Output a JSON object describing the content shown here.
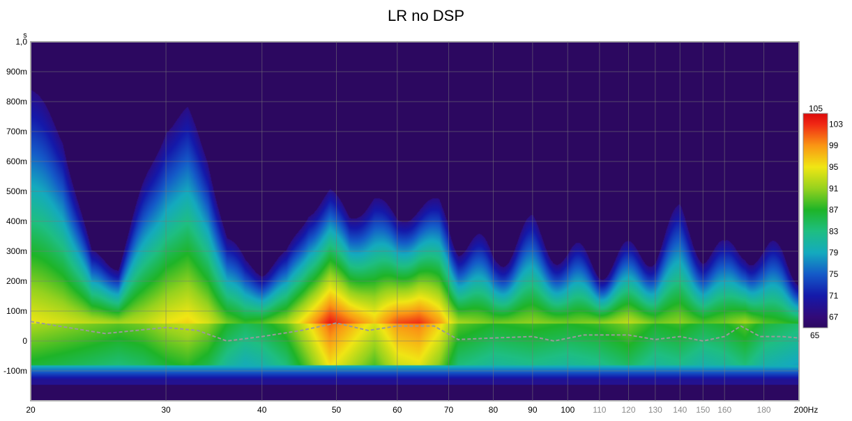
{
  "chart_data": {
    "type": "heatmap",
    "title": "LR no DSP",
    "y_unit": "s",
    "x_unit": "Hz",
    "x_scale": "log",
    "xlim": [
      20,
      200
    ],
    "ylim": [
      -0.2,
      1.0
    ],
    "x_ticks": [
      {
        "value": 20,
        "label": "20",
        "major": true
      },
      {
        "value": 30,
        "label": "30",
        "major": true
      },
      {
        "value": 40,
        "label": "40",
        "major": true
      },
      {
        "value": 50,
        "label": "50",
        "major": true
      },
      {
        "value": 60,
        "label": "60",
        "major": true
      },
      {
        "value": 70,
        "label": "70",
        "major": true
      },
      {
        "value": 80,
        "label": "80",
        "major": true
      },
      {
        "value": 90,
        "label": "90",
        "major": true
      },
      {
        "value": 100,
        "label": "100",
        "major": true
      },
      {
        "value": 110,
        "label": "110",
        "major": false
      },
      {
        "value": 120,
        "label": "120",
        "major": false
      },
      {
        "value": 130,
        "label": "130",
        "major": false
      },
      {
        "value": 140,
        "label": "140",
        "major": false
      },
      {
        "value": 150,
        "label": "150",
        "major": false
      },
      {
        "value": 160,
        "label": "160",
        "major": false
      },
      {
        "value": 180,
        "label": "180",
        "major": false
      },
      {
        "value": 200,
        "label": "200Hz",
        "major": true
      }
    ],
    "y_ticks": [
      {
        "value": 1.0,
        "label": "1,0"
      },
      {
        "value": 0.9,
        "label": "900m"
      },
      {
        "value": 0.8,
        "label": "800m"
      },
      {
        "value": 0.7,
        "label": "700m"
      },
      {
        "value": 0.6,
        "label": "600m"
      },
      {
        "value": 0.5,
        "label": "500m"
      },
      {
        "value": 0.4,
        "label": "400m"
      },
      {
        "value": 0.3,
        "label": "300m"
      },
      {
        "value": 0.2,
        "label": "200m"
      },
      {
        "value": 0.1,
        "label": "100m"
      },
      {
        "value": 0.0,
        "label": "0"
      },
      {
        "value": -0.1,
        "label": "-100m"
      }
    ],
    "colorbar": {
      "min": 65,
      "max": 105,
      "labels": [
        "105",
        "103",
        "99",
        "95",
        "91",
        "87",
        "83",
        "79",
        "75",
        "71",
        "67",
        "65"
      ],
      "label_values": [
        105,
        103,
        99,
        95,
        91,
        87,
        83,
        79,
        75,
        71,
        67,
        65
      ]
    },
    "decay_profile_s": [
      {
        "x": 20,
        "decay": 0.78,
        "peak": 95
      },
      {
        "x": 22,
        "decay": 0.62,
        "peak": 94
      },
      {
        "x": 24,
        "decay": 0.22,
        "peak": 93
      },
      {
        "x": 26,
        "decay": 0.2,
        "peak": 92
      },
      {
        "x": 28,
        "decay": 0.45,
        "peak": 93
      },
      {
        "x": 30,
        "decay": 0.66,
        "peak": 95
      },
      {
        "x": 32,
        "decay": 0.7,
        "peak": 96
      },
      {
        "x": 34,
        "decay": 0.55,
        "peak": 94
      },
      {
        "x": 36,
        "decay": 0.28,
        "peak": 90
      },
      {
        "x": 38,
        "decay": 0.2,
        "peak": 88
      },
      {
        "x": 40,
        "decay": 0.18,
        "peak": 89
      },
      {
        "x": 43,
        "decay": 0.22,
        "peak": 92
      },
      {
        "x": 46,
        "decay": 0.38,
        "peak": 98
      },
      {
        "x": 49,
        "decay": 0.43,
        "peak": 104
      },
      {
        "x": 52,
        "decay": 0.36,
        "peak": 101
      },
      {
        "x": 56,
        "decay": 0.41,
        "peak": 97
      },
      {
        "x": 60,
        "decay": 0.35,
        "peak": 102
      },
      {
        "x": 64,
        "decay": 0.38,
        "peak": 103
      },
      {
        "x": 68,
        "decay": 0.4,
        "peak": 99
      },
      {
        "x": 72,
        "decay": 0.28,
        "peak": 92
      },
      {
        "x": 80,
        "decay": 0.22,
        "peak": 90
      },
      {
        "x": 90,
        "decay": 0.31,
        "peak": 91
      },
      {
        "x": 100,
        "decay": 0.22,
        "peak": 90
      },
      {
        "x": 110,
        "decay": 0.2,
        "peak": 91
      },
      {
        "x": 120,
        "decay": 0.22,
        "peak": 93
      },
      {
        "x": 130,
        "decay": 0.25,
        "peak": 90
      },
      {
        "x": 140,
        "decay": 0.35,
        "peak": 91
      },
      {
        "x": 150,
        "decay": 0.25,
        "peak": 89
      },
      {
        "x": 160,
        "decay": 0.22,
        "peak": 90
      },
      {
        "x": 170,
        "decay": 0.26,
        "peak": 92
      },
      {
        "x": 180,
        "decay": 0.22,
        "peak": 89
      },
      {
        "x": 190,
        "decay": 0.22,
        "peak": 88
      },
      {
        "x": 200,
        "decay": 0.18,
        "peak": 87
      }
    ],
    "peak_time_line_s": [
      {
        "x": 20,
        "y": 0.065
      },
      {
        "x": 25,
        "y": 0.025
      },
      {
        "x": 30,
        "y": 0.045
      },
      {
        "x": 33,
        "y": 0.035
      },
      {
        "x": 36,
        "y": 0.0
      },
      {
        "x": 40,
        "y": 0.015
      },
      {
        "x": 45,
        "y": 0.035
      },
      {
        "x": 50,
        "y": 0.06
      },
      {
        "x": 55,
        "y": 0.035
      },
      {
        "x": 60,
        "y": 0.05
      },
      {
        "x": 67,
        "y": 0.05
      },
      {
        "x": 72,
        "y": 0.005
      },
      {
        "x": 80,
        "y": 0.01
      },
      {
        "x": 90,
        "y": 0.015
      },
      {
        "x": 96,
        "y": 0.0
      },
      {
        "x": 105,
        "y": 0.02
      },
      {
        "x": 120,
        "y": 0.02
      },
      {
        "x": 130,
        "y": 0.005
      },
      {
        "x": 140,
        "y": 0.015
      },
      {
        "x": 150,
        "y": 0.0
      },
      {
        "x": 160,
        "y": 0.015
      },
      {
        "x": 168,
        "y": 0.05
      },
      {
        "x": 178,
        "y": 0.015
      },
      {
        "x": 190,
        "y": 0.015
      },
      {
        "x": 200,
        "y": 0.01
      }
    ],
    "grid": true,
    "legend": "colorbar-right"
  }
}
